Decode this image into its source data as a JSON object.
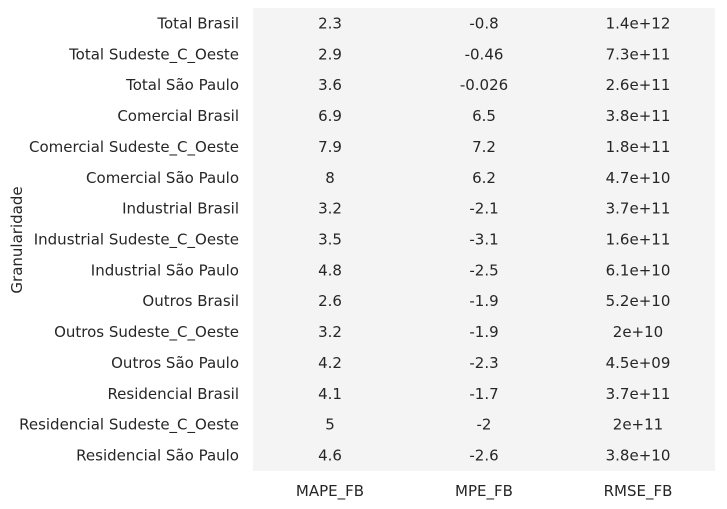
{
  "chart_data": {
    "type": "heatmap",
    "ylabel": "Granularidade",
    "columns": [
      "MAPE_FB",
      "MPE_FB",
      "RMSE_FB"
    ],
    "rows": [
      "Total Brasil",
      "Total Sudeste_C_Oeste",
      "Total São Paulo",
      "Comercial Brasil",
      "Comercial Sudeste_C_Oeste",
      "Comercial São Paulo",
      "Industrial Brasil",
      "Industrial Sudeste_C_Oeste",
      "Industrial São Paulo",
      "Outros Brasil",
      "Outros Sudeste_C_Oeste",
      "Outros São Paulo",
      "Residencial Brasil",
      "Residencial Sudeste_C_Oeste",
      "Residencial São Paulo"
    ],
    "cells": [
      [
        "2.3",
        "-0.8",
        "1.4e+12"
      ],
      [
        "2.9",
        "-0.46",
        "7.3e+11"
      ],
      [
        "3.6",
        "-0.026",
        "2.6e+11"
      ],
      [
        "6.9",
        "6.5",
        "3.8e+11"
      ],
      [
        "7.9",
        "7.2",
        "1.8e+11"
      ],
      [
        "8",
        "6.2",
        "4.7e+10"
      ],
      [
        "3.2",
        "-2.1",
        "3.7e+11"
      ],
      [
        "3.5",
        "-3.1",
        "1.6e+11"
      ],
      [
        "4.8",
        "-2.5",
        "6.1e+10"
      ],
      [
        "2.6",
        "-1.9",
        "5.2e+10"
      ],
      [
        "3.2",
        "-1.9",
        "2e+10"
      ],
      [
        "4.2",
        "-2.3",
        "4.5e+09"
      ],
      [
        "4.1",
        "-1.7",
        "3.7e+11"
      ],
      [
        "5",
        "-2",
        "2e+11"
      ],
      [
        "4.6",
        "-2.6",
        "3.8e+10"
      ]
    ],
    "cell_color": "#f4f4f4",
    "background": "#ffffff"
  }
}
